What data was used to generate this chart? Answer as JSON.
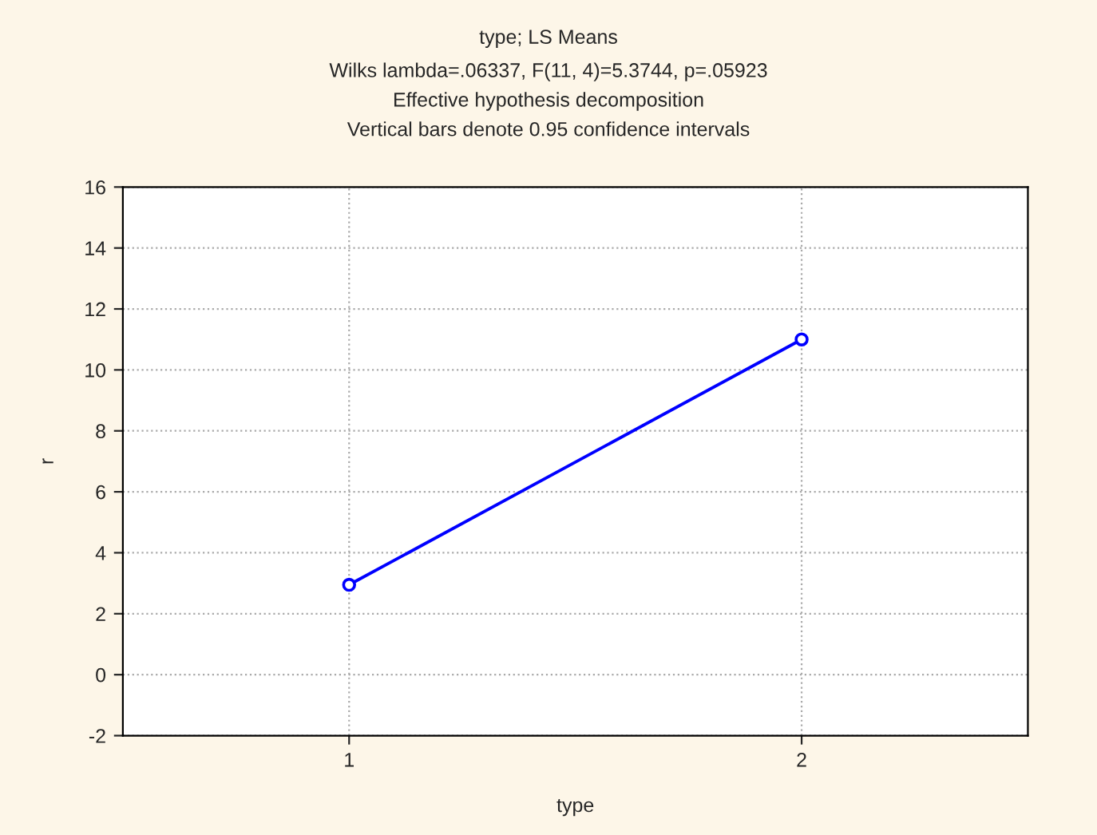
{
  "chart_data": {
    "type": "line",
    "title": "type; LS Means",
    "subtitle": "Wilks lambda=.06337, F(11, 4)=5.3744, p=.05923\nEffective hypothesis decomposition\nVertical bars denote 0.95 confidence intervals",
    "xlabel": "type",
    "ylabel": "r",
    "categories": [
      "1",
      "2"
    ],
    "series": [
      {
        "color": "#0000ff",
        "values": [
          2.95,
          11.0
        ]
      }
    ],
    "ylim": [
      -2,
      16
    ],
    "yticks": [
      -2,
      0,
      2,
      4,
      6,
      8,
      10,
      12,
      14,
      16
    ],
    "grid": true,
    "marker": "circle",
    "line_style": "solid"
  }
}
